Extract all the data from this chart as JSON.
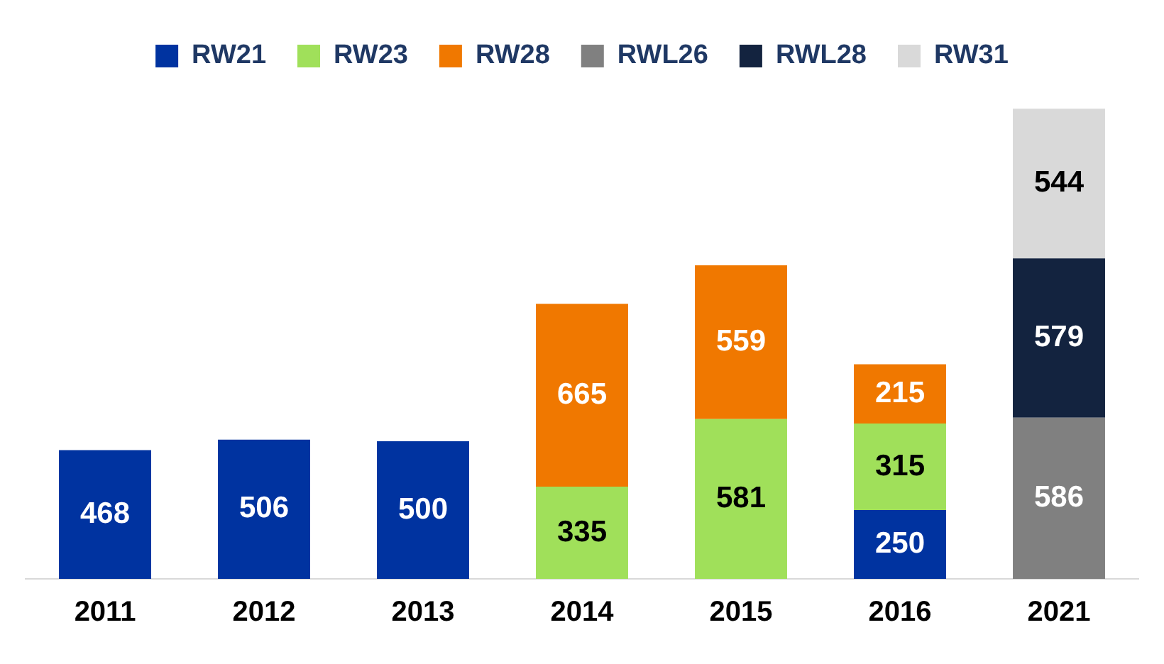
{
  "chart_data": {
    "type": "bar",
    "stacked": true,
    "categories": [
      "2011",
      "2012",
      "2013",
      "2014",
      "2015",
      "2016",
      "2021"
    ],
    "series": [
      {
        "name": "RW21",
        "color": "#0033a0",
        "values": [
          468,
          506,
          500,
          null,
          null,
          250,
          null
        ]
      },
      {
        "name": "RW23",
        "color": "#a0e05a",
        "values": [
          null,
          null,
          null,
          335,
          581,
          315,
          null
        ]
      },
      {
        "name": "RW28",
        "color": "#f07800",
        "values": [
          null,
          null,
          null,
          665,
          559,
          215,
          null
        ]
      },
      {
        "name": "RWL26",
        "color": "#808080",
        "values": [
          null,
          null,
          null,
          null,
          null,
          null,
          586
        ]
      },
      {
        "name": "RWL28",
        "color": "#13233f",
        "values": [
          null,
          null,
          null,
          null,
          null,
          null,
          579
        ]
      },
      {
        "name": "RW31",
        "color": "#d9d9d9",
        "values": [
          null,
          null,
          null,
          null,
          null,
          null,
          544
        ]
      }
    ],
    "data_labels": true,
    "legend": "top",
    "grid": false,
    "tick_labels": "x"
  }
}
